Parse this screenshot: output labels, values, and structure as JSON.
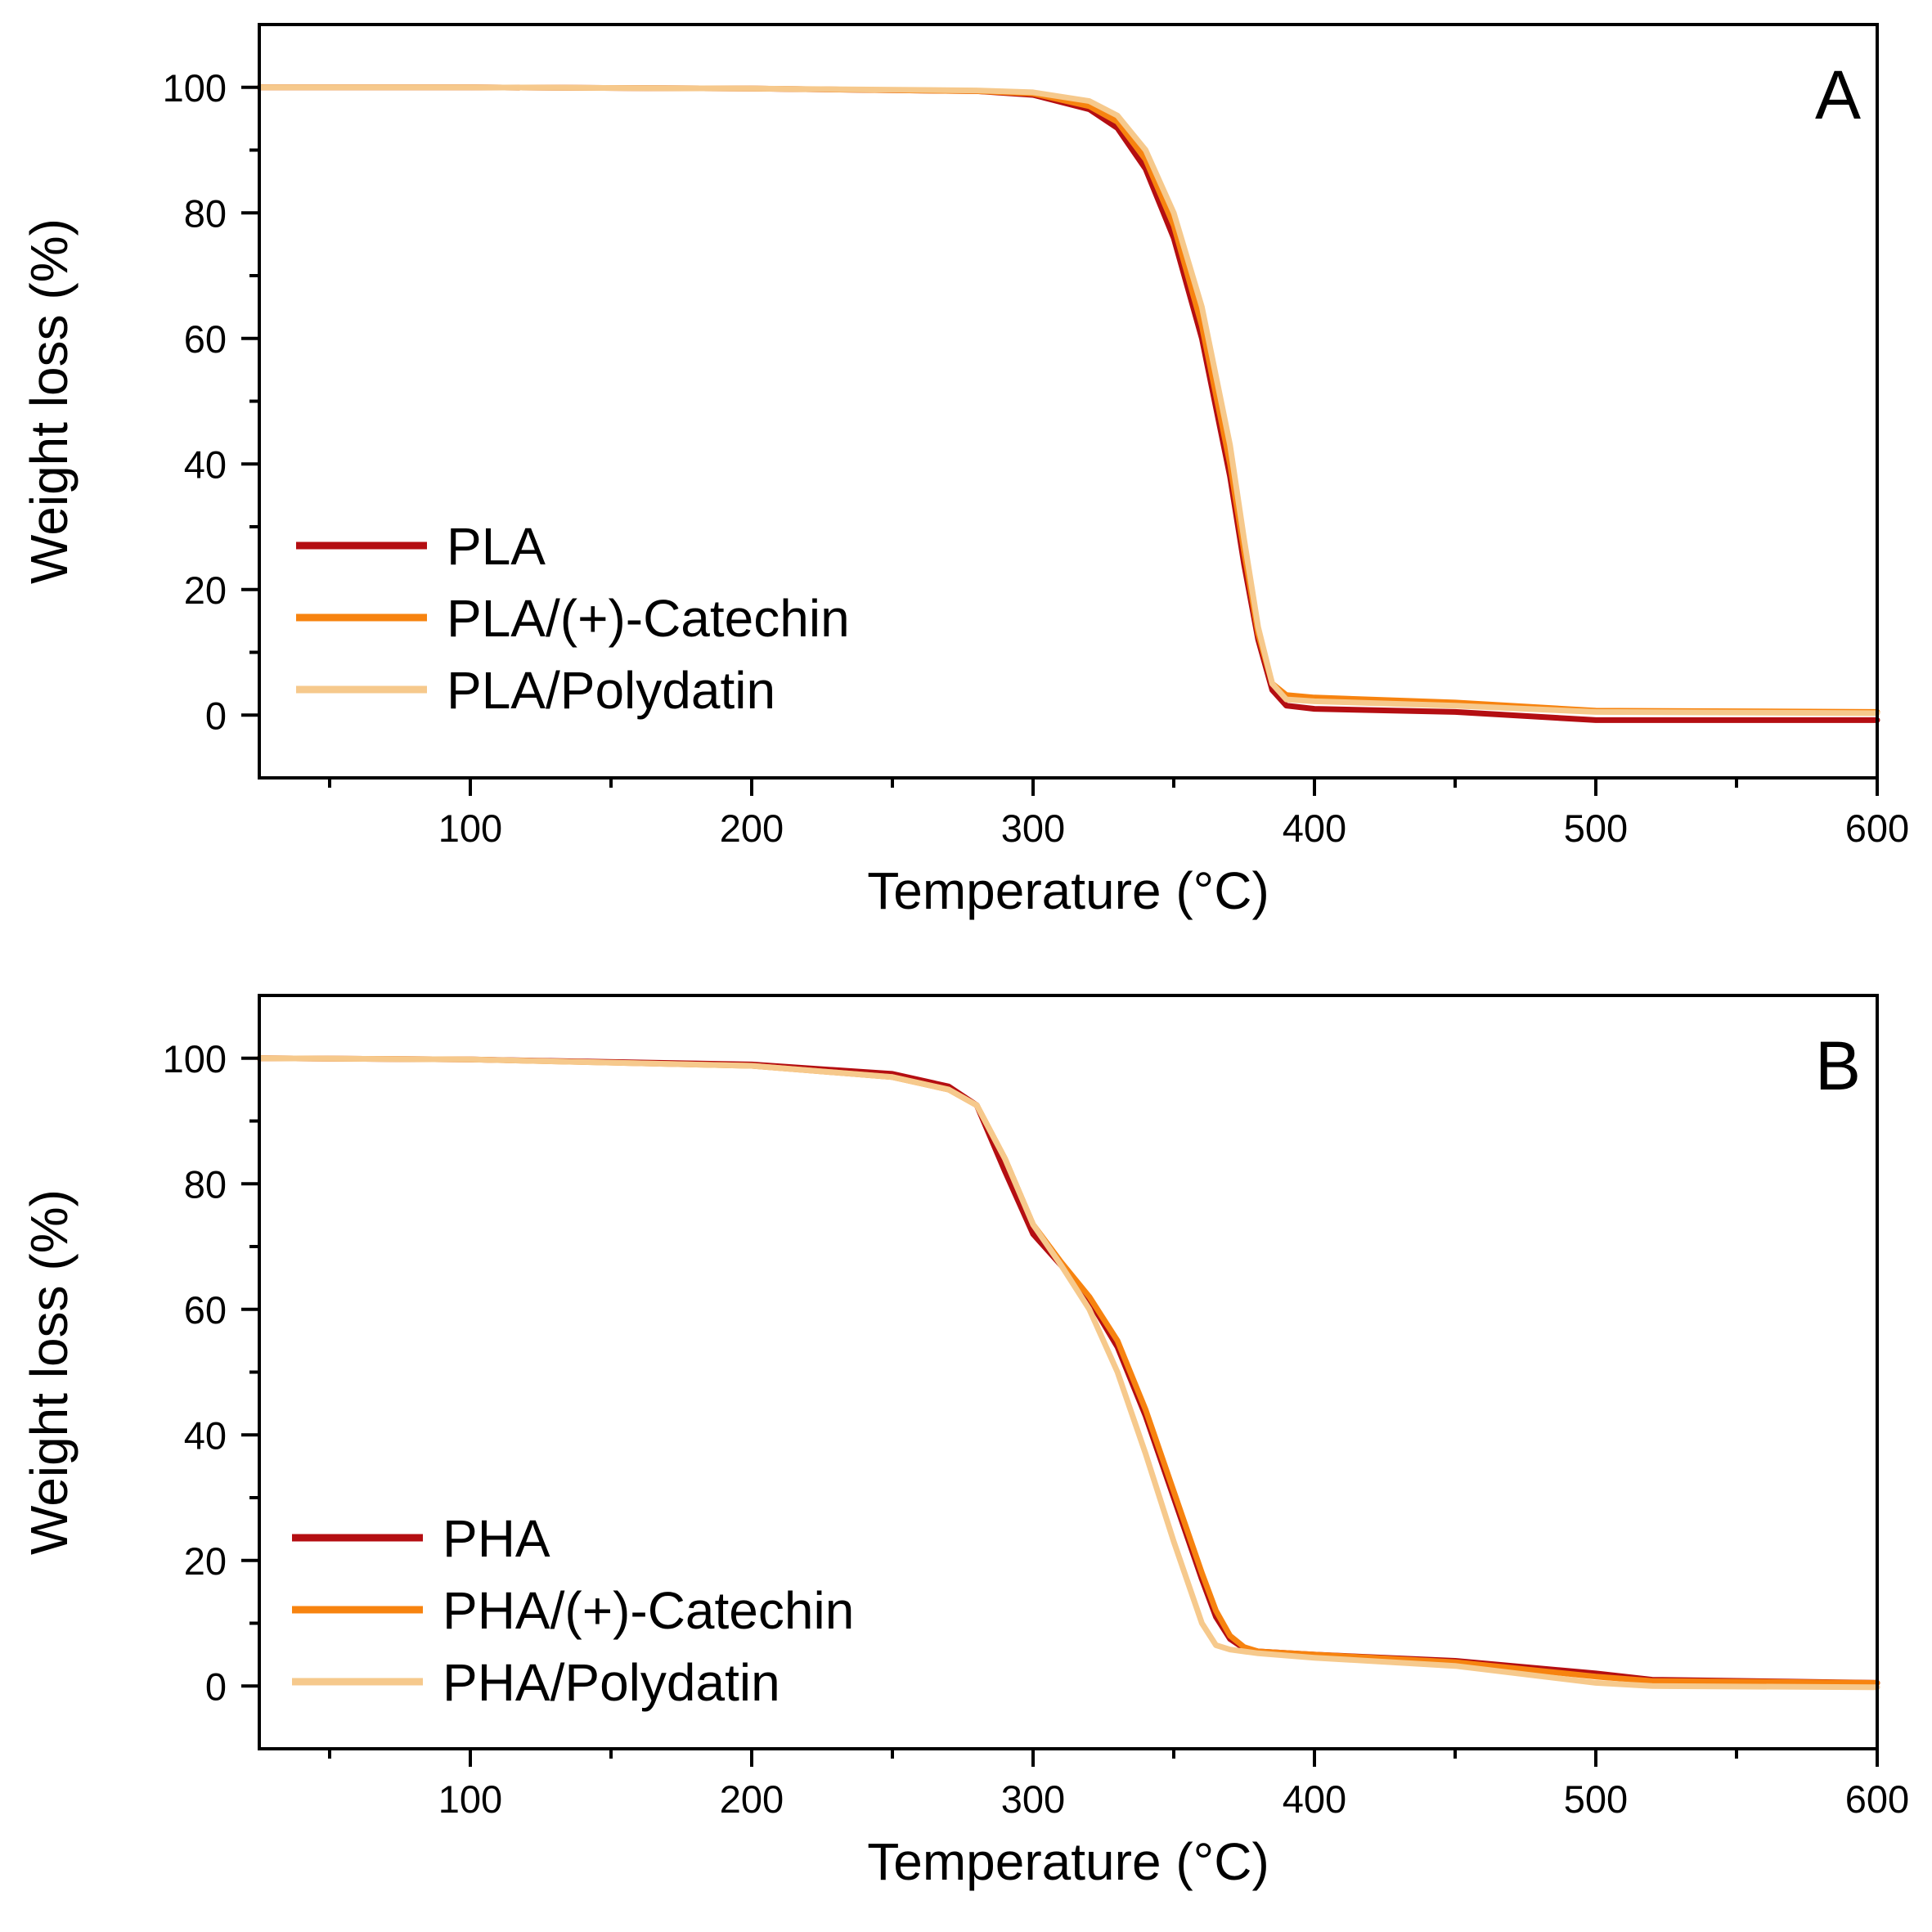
{
  "chart_data": [
    {
      "type": "line",
      "panel_label": "A",
      "xlabel": "Temperature (°C)",
      "ylabel": "Weight loss (%)",
      "xlim": [
        25,
        600
      ],
      "ylim": [
        -10,
        110
      ],
      "x_ticks": [
        100,
        200,
        300,
        400,
        500,
        600
      ],
      "y_ticks": [
        0,
        20,
        40,
        60,
        80,
        100
      ],
      "legend_position": "bottom-left",
      "grid": false,
      "series": [
        {
          "name": "PLA",
          "color": "#b40e12",
          "x": [
            25,
            100,
            200,
            280,
            300,
            320,
            330,
            340,
            350,
            360,
            370,
            375,
            380,
            385,
            390,
            400,
            450,
            500,
            600
          ],
          "y": [
            100,
            100,
            99.8,
            99.4,
            98.8,
            96.5,
            93.5,
            87,
            76,
            60,
            38,
            24,
            12,
            4,
            1.5,
            1,
            0.5,
            -0.8,
            -0.8
          ]
        },
        {
          "name": "PLA/(+)-Catechin",
          "color": "#f7830f",
          "x": [
            25,
            100,
            200,
            280,
            300,
            320,
            330,
            340,
            350,
            360,
            370,
            375,
            380,
            385,
            390,
            400,
            450,
            500,
            600
          ],
          "y": [
            100,
            100,
            99.8,
            99.4,
            99,
            97,
            94.5,
            88.5,
            78,
            62,
            40,
            26,
            13,
            5,
            3.2,
            2.8,
            2,
            0.7,
            0.5
          ]
        },
        {
          "name": "PLA/Polydatin",
          "color": "#f6c98c",
          "x": [
            25,
            100,
            200,
            280,
            300,
            320,
            330,
            340,
            350,
            360,
            370,
            375,
            380,
            385,
            390,
            400,
            450,
            500,
            600
          ],
          "y": [
            100,
            100,
            99.8,
            99.5,
            99.2,
            97.8,
            95.5,
            90,
            80,
            65,
            43,
            28,
            14,
            5,
            2.5,
            2.2,
            1.5,
            0.5,
            0.3
          ]
        }
      ]
    },
    {
      "type": "line",
      "panel_label": "B",
      "xlabel": "Temperature (°C)",
      "ylabel": "Weight loss (%)",
      "xlim": [
        25,
        600
      ],
      "ylim": [
        -10,
        110
      ],
      "x_ticks": [
        100,
        200,
        300,
        400,
        500,
        600
      ],
      "y_ticks": [
        0,
        20,
        40,
        60,
        80,
        100
      ],
      "legend_position": "bottom-left",
      "grid": false,
      "series": [
        {
          "name": "PHA",
          "color": "#b40e12",
          "x": [
            25,
            100,
            200,
            250,
            270,
            280,
            290,
            300,
            310,
            320,
            330,
            340,
            350,
            360,
            365,
            370,
            375,
            380,
            400,
            450,
            500,
            520,
            600
          ],
          "y": [
            100,
            99.8,
            99,
            97.5,
            95.5,
            92.5,
            82,
            72,
            67,
            61.5,
            54,
            43,
            30,
            17,
            11,
            7.5,
            6,
            5.5,
            5,
            4,
            2,
            1,
            0.5
          ]
        },
        {
          "name": "PHA/(+)-Catechin",
          "color": "#f7830f",
          "x": [
            25,
            100,
            200,
            250,
            270,
            280,
            290,
            300,
            310,
            320,
            330,
            340,
            350,
            360,
            365,
            370,
            375,
            380,
            400,
            450,
            500,
            520,
            600
          ],
          "y": [
            100,
            99.8,
            98.8,
            97,
            95,
            92.5,
            84,
            73.5,
            67.5,
            62,
            55,
            44,
            31,
            18,
            12,
            8,
            6.2,
            5.5,
            5,
            3.8,
            1.5,
            0.8,
            0.5
          ]
        },
        {
          "name": "PHA/Polydatin",
          "color": "#f6c98c",
          "x": [
            25,
            100,
            200,
            250,
            270,
            280,
            290,
            300,
            310,
            320,
            330,
            340,
            350,
            360,
            365,
            370,
            375,
            380,
            400,
            450,
            500,
            520,
            600
          ],
          "y": [
            100,
            99.8,
            98.8,
            97,
            95,
            92.5,
            84,
            73.5,
            67,
            60,
            50,
            37,
            23,
            10,
            6.5,
            5.8,
            5.5,
            5.2,
            4.5,
            3.2,
            0.5,
            0,
            -0.2
          ]
        }
      ]
    }
  ]
}
